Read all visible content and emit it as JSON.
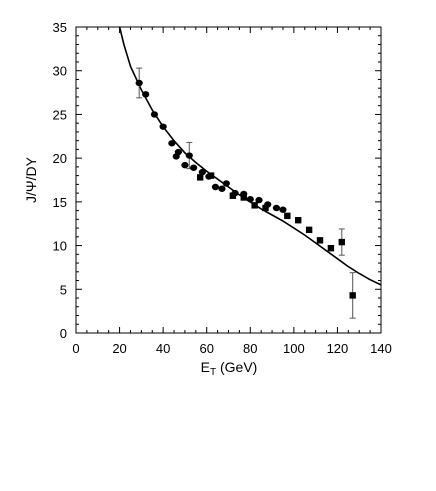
{
  "chart_data": {
    "type": "scatter",
    "title": "",
    "xlabel": {
      "main": "E",
      "sub": "T",
      "rest": " (GeV)"
    },
    "ylabel": "J/Ψ/DY",
    "xlim": [
      0,
      140
    ],
    "ylim": [
      0,
      35
    ],
    "xticks": [
      0,
      20,
      40,
      60,
      80,
      100,
      120,
      140
    ],
    "yticks": [
      0,
      5,
      10,
      15,
      20,
      25,
      30,
      35
    ],
    "grid": false,
    "legend": "none",
    "series": [
      {
        "marker": "circle",
        "points": [
          {
            "x": 29,
            "y": 28.6,
            "err": 1.7
          },
          {
            "x": 32,
            "y": 27.3
          },
          {
            "x": 36,
            "y": 25.0
          },
          {
            "x": 40,
            "y": 23.6
          },
          {
            "x": 44,
            "y": 21.7
          },
          {
            "x": 46,
            "y": 20.2
          },
          {
            "x": 47,
            "y": 20.7
          },
          {
            "x": 50,
            "y": 19.2
          },
          {
            "x": 52,
            "y": 20.3,
            "err": 1.5
          },
          {
            "x": 54,
            "y": 18.9
          },
          {
            "x": 58,
            "y": 18.4
          },
          {
            "x": 61,
            "y": 17.9
          },
          {
            "x": 64,
            "y": 16.7
          },
          {
            "x": 67,
            "y": 16.5
          },
          {
            "x": 69,
            "y": 17.1
          },
          {
            "x": 73,
            "y": 16.0
          },
          {
            "x": 77,
            "y": 15.9
          },
          {
            "x": 80,
            "y": 15.3
          },
          {
            "x": 84,
            "y": 15.2
          },
          {
            "x": 88,
            "y": 14.7
          },
          {
            "x": 92,
            "y": 14.3
          },
          {
            "x": 95,
            "y": 14.1
          }
        ]
      },
      {
        "marker": "square",
        "points": [
          {
            "x": 57,
            "y": 17.8
          },
          {
            "x": 62,
            "y": 18.0
          },
          {
            "x": 72,
            "y": 15.7
          },
          {
            "x": 77,
            "y": 15.5
          },
          {
            "x": 82,
            "y": 14.6
          },
          {
            "x": 87,
            "y": 14.3
          },
          {
            "x": 97,
            "y": 13.4
          },
          {
            "x": 102,
            "y": 12.9
          },
          {
            "x": 107,
            "y": 11.8
          },
          {
            "x": 112,
            "y": 10.6
          },
          {
            "x": 117,
            "y": 9.7
          },
          {
            "x": 122,
            "y": 10.4,
            "err": 1.5
          },
          {
            "x": 127,
            "y": 4.3,
            "err": 2.6
          }
        ]
      }
    ],
    "curve": {
      "style": "solid",
      "points": [
        [
          20,
          35
        ],
        [
          22,
          33.0
        ],
        [
          25,
          30.5
        ],
        [
          30,
          27.8
        ],
        [
          35,
          25.5
        ],
        [
          40,
          23.6
        ],
        [
          45,
          22.0
        ],
        [
          50,
          20.6
        ],
        [
          55,
          19.5
        ],
        [
          60,
          18.5
        ],
        [
          65,
          17.6
        ],
        [
          70,
          16.7
        ],
        [
          75,
          15.8
        ],
        [
          80,
          15.0
        ],
        [
          85,
          14.2
        ],
        [
          90,
          13.5
        ],
        [
          95,
          12.8
        ],
        [
          100,
          12.0
        ],
        [
          105,
          11.2
        ],
        [
          110,
          10.3
        ],
        [
          115,
          9.4
        ],
        [
          120,
          8.5
        ],
        [
          125,
          7.6
        ],
        [
          130,
          6.8
        ],
        [
          135,
          6.1
        ],
        [
          140,
          5.5
        ]
      ]
    }
  }
}
